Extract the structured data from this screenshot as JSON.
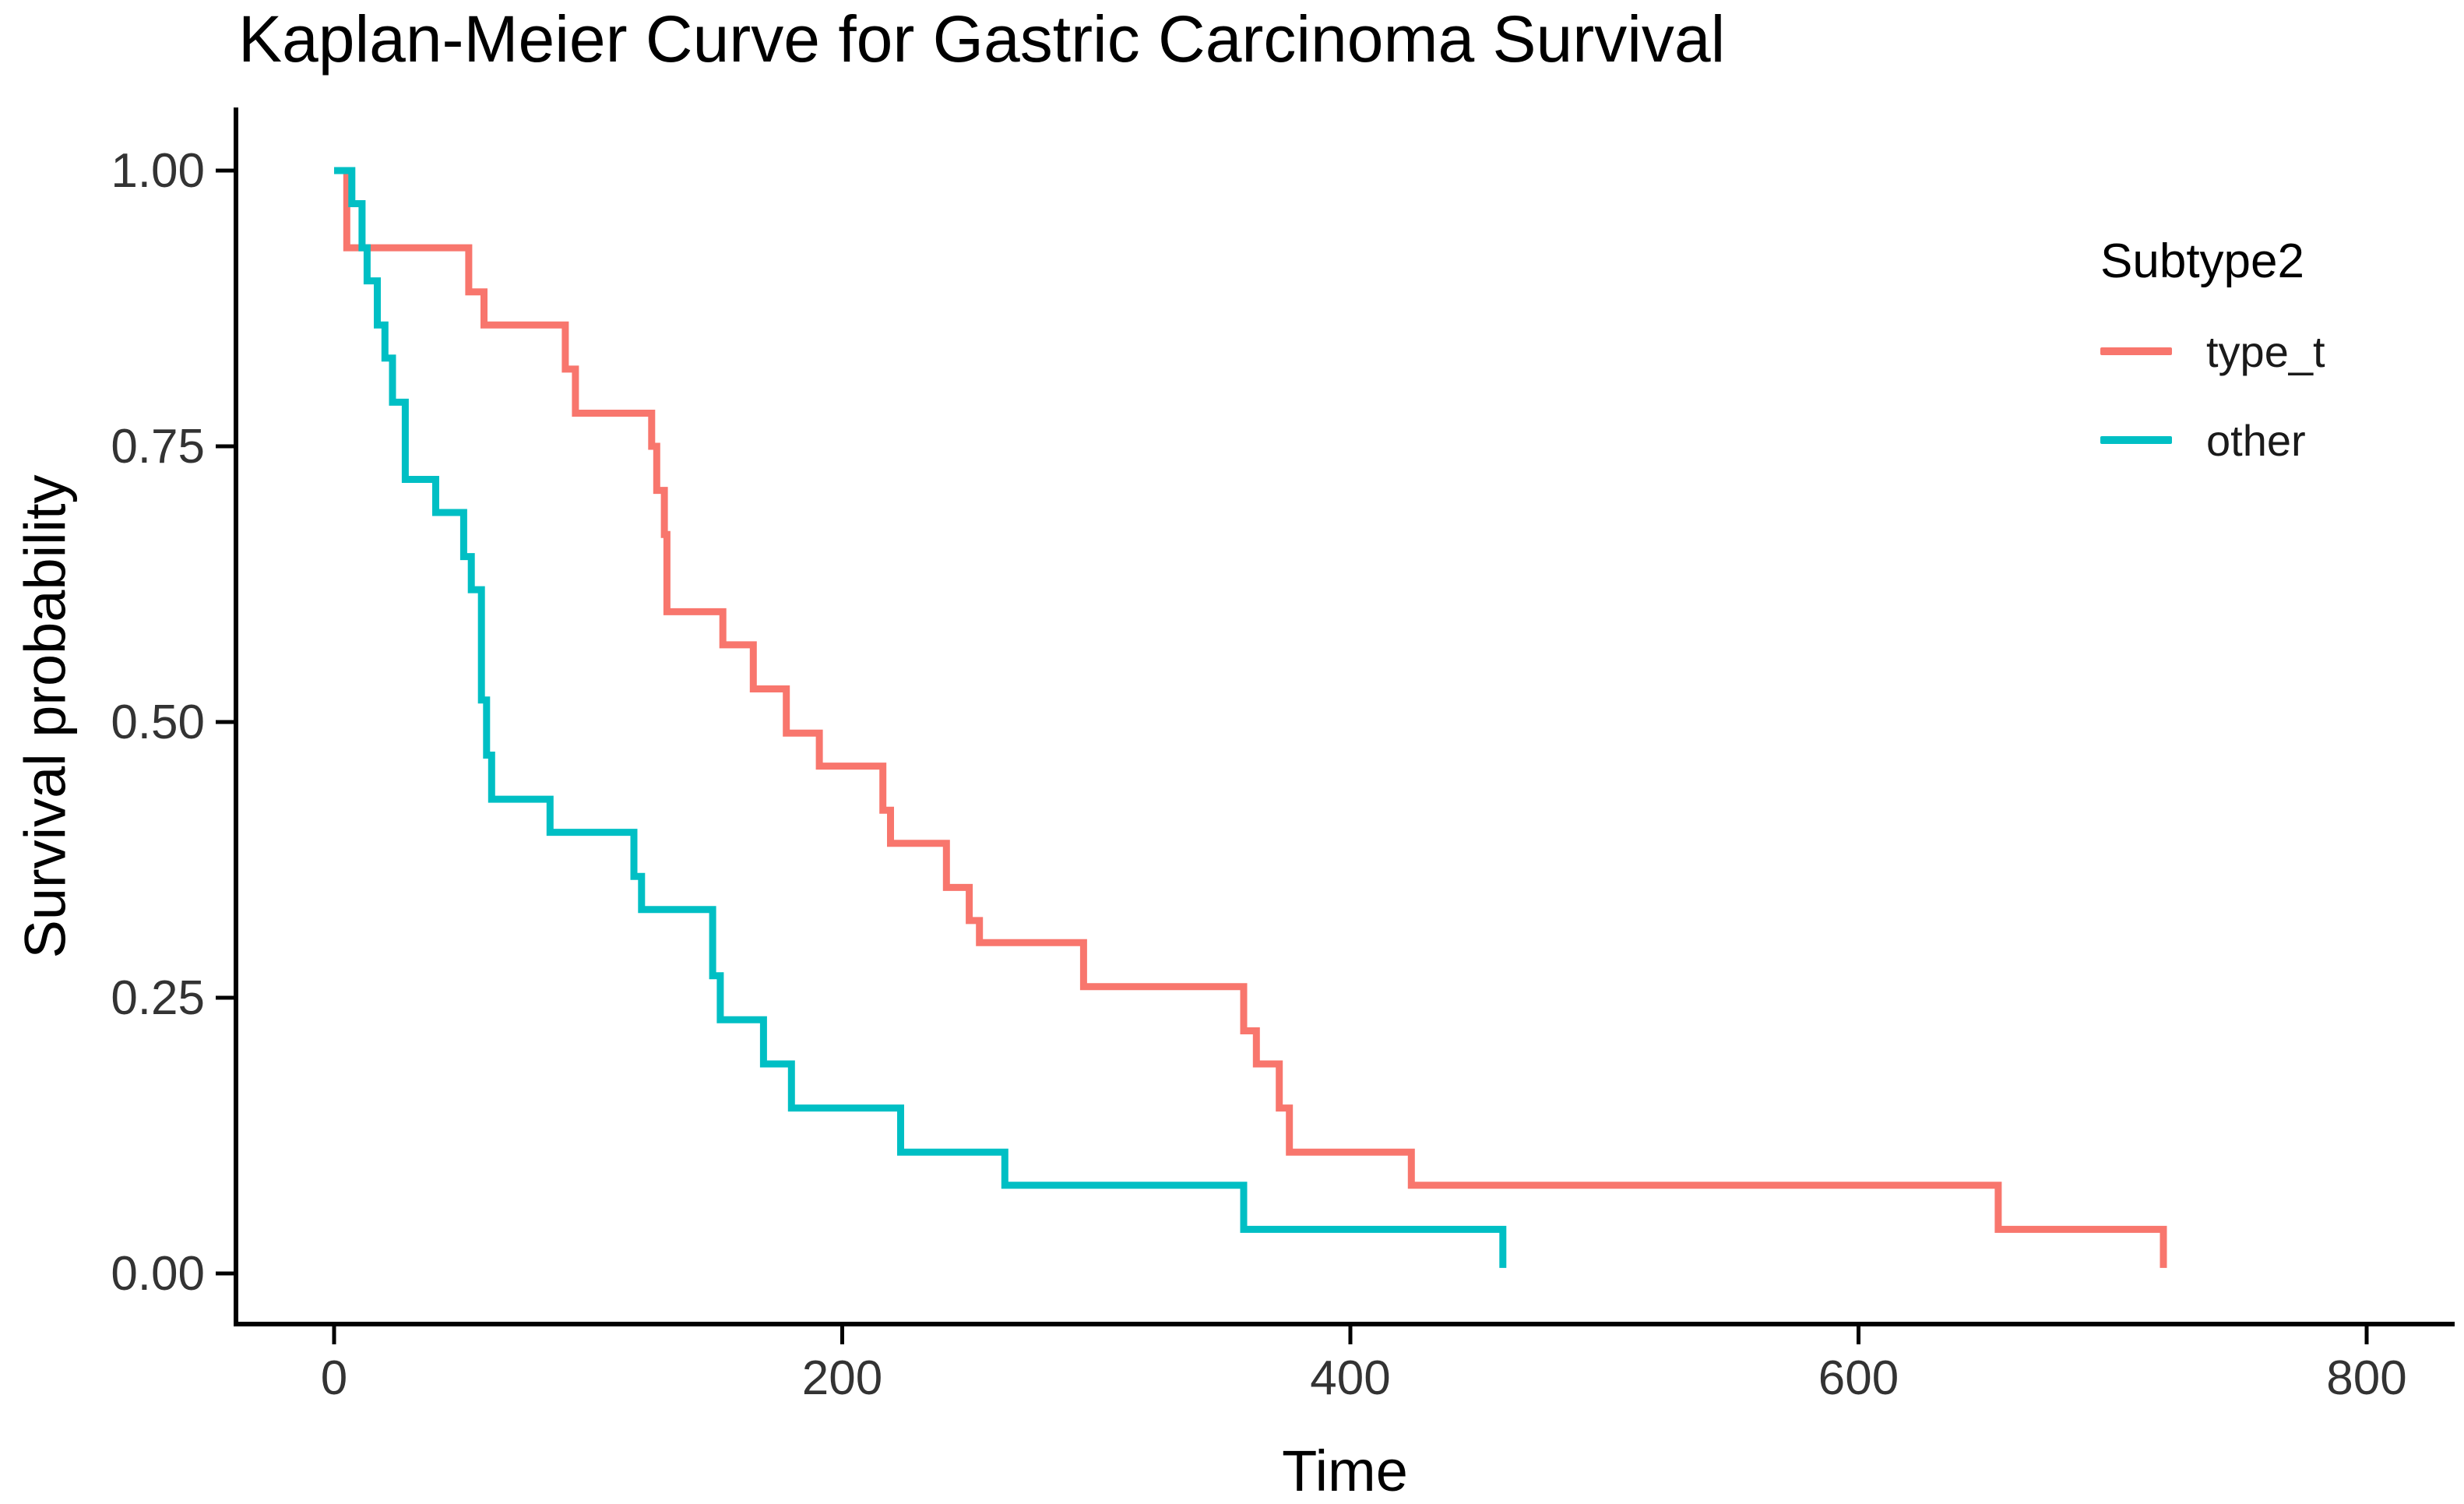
{
  "chart_data": {
    "type": "line",
    "variant": "kaplan_meier_step",
    "title": "Kaplan-Meier Curve for Gastric Carcinoma Survival",
    "xlabel": "Time",
    "ylabel": "Survival probability",
    "legend_title": "Subtype2",
    "legend_position": "right",
    "grid": false,
    "background": "#ffffff",
    "axis_color": "#000000",
    "tick_text_color": "#333333",
    "xlim": [
      0,
      800
    ],
    "ylim": [
      0,
      1
    ],
    "x_ticks": [
      {
        "value": 0,
        "label": "0"
      },
      {
        "value": 200,
        "label": "200"
      },
      {
        "value": 400,
        "label": "400"
      },
      {
        "value": 600,
        "label": "600"
      },
      {
        "value": 800,
        "label": "800"
      }
    ],
    "y_ticks": [
      {
        "value": 0.0,
        "label": "0.00"
      },
      {
        "value": 0.25,
        "label": "0.25"
      },
      {
        "value": 0.5,
        "label": "0.50"
      },
      {
        "value": 0.75,
        "label": "0.75"
      },
      {
        "value": 1.0,
        "label": "1.00"
      }
    ],
    "series": [
      {
        "name": "type_t",
        "color": "#F8766D",
        "steps": [
          [
            0,
            1.0
          ],
          [
            5,
            0.93
          ],
          [
            53,
            0.89
          ],
          [
            59,
            0.86
          ],
          [
            91,
            0.82
          ],
          [
            95,
            0.78
          ],
          [
            125,
            0.75
          ],
          [
            127,
            0.71
          ],
          [
            130,
            0.67
          ],
          [
            131,
            0.6
          ],
          [
            153,
            0.57
          ],
          [
            165,
            0.53
          ],
          [
            178,
            0.49
          ],
          [
            191,
            0.46
          ],
          [
            216,
            0.42
          ],
          [
            219,
            0.39
          ],
          [
            241,
            0.35
          ],
          [
            250,
            0.32
          ],
          [
            254,
            0.3
          ],
          [
            295,
            0.26
          ],
          [
            358,
            0.22
          ],
          [
            363,
            0.19
          ],
          [
            372,
            0.15
          ],
          [
            376,
            0.11
          ],
          [
            424,
            0.08
          ],
          [
            655,
            0.04
          ],
          [
            720,
            0.005
          ]
        ]
      },
      {
        "name": "other",
        "color": "#00BFC4",
        "steps": [
          [
            0,
            1.0
          ],
          [
            7,
            0.97
          ],
          [
            11,
            0.93
          ],
          [
            13,
            0.9
          ],
          [
            17,
            0.86
          ],
          [
            20,
            0.83
          ],
          [
            23,
            0.79
          ],
          [
            28,
            0.72
          ],
          [
            40,
            0.69
          ],
          [
            51,
            0.65
          ],
          [
            54,
            0.62
          ],
          [
            58,
            0.52
          ],
          [
            60,
            0.47
          ],
          [
            62,
            0.43
          ],
          [
            85,
            0.4
          ],
          [
            118,
            0.36
          ],
          [
            121,
            0.33
          ],
          [
            149,
            0.27
          ],
          [
            152,
            0.23
          ],
          [
            169,
            0.19
          ],
          [
            180,
            0.15
          ],
          [
            223,
            0.11
          ],
          [
            264,
            0.08
          ],
          [
            358,
            0.04
          ],
          [
            460,
            0.005
          ]
        ]
      }
    ]
  }
}
